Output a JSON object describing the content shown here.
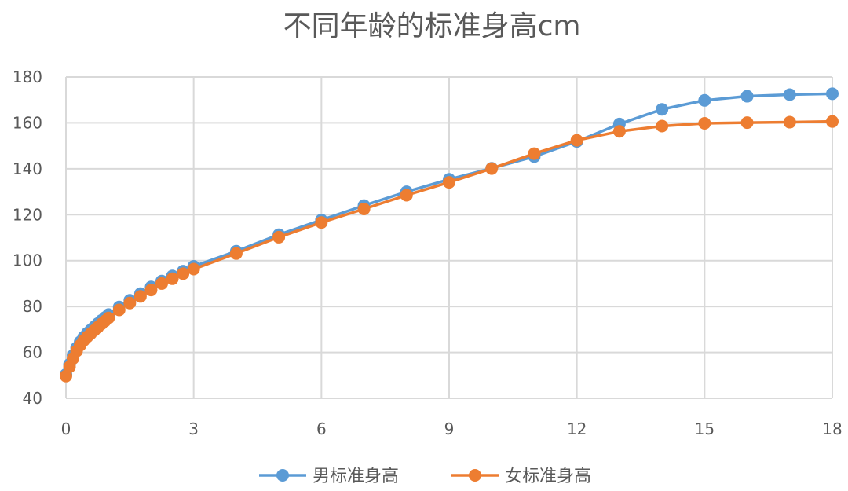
{
  "chart_data": {
    "type": "line",
    "title": "不同年龄的标准身高cm",
    "xlabel": "",
    "ylabel": "",
    "xlim": [
      0,
      18
    ],
    "ylim": [
      40,
      180
    ],
    "xticks": [
      0,
      3,
      6,
      9,
      12,
      15,
      18
    ],
    "yticks": [
      40,
      60,
      80,
      100,
      120,
      140,
      160,
      180
    ],
    "grid": true,
    "legend_position": "bottom",
    "x": [
      0,
      0.0833,
      0.1667,
      0.25,
      0.3333,
      0.4167,
      0.5,
      0.5833,
      0.6667,
      0.75,
      0.8333,
      0.9167,
      1,
      1.25,
      1.5,
      1.75,
      2,
      2.25,
      2.5,
      2.75,
      3,
      4,
      5,
      6,
      7,
      8,
      9,
      10,
      11,
      12,
      13,
      14,
      15,
      16,
      17,
      18
    ],
    "series": [
      {
        "name": "男标准身高",
        "color": "#5B9BD5",
        "values": [
          50.4,
          54.8,
          58.7,
          62.0,
          64.6,
          66.7,
          68.4,
          69.8,
          71.2,
          72.6,
          73.9,
          75.2,
          76.5,
          79.8,
          82.7,
          85.6,
          88.5,
          91.1,
          93.3,
          95.4,
          97.5,
          104.1,
          111.3,
          117.7,
          124.0,
          130.0,
          135.4,
          140.2,
          145.3,
          151.9,
          159.5,
          165.9,
          169.8,
          171.6,
          172.3,
          172.7
        ]
      },
      {
        "name": "女标准身高",
        "color": "#ED7D31",
        "values": [
          49.7,
          53.7,
          57.4,
          60.6,
          63.1,
          65.2,
          66.8,
          68.2,
          69.6,
          71.0,
          72.4,
          73.7,
          75.0,
          78.5,
          81.5,
          84.4,
          87.2,
          90.0,
          92.1,
          94.3,
          96.3,
          103.1,
          110.2,
          116.6,
          122.5,
          128.5,
          134.1,
          140.1,
          146.6,
          152.4,
          156.3,
          158.6,
          159.8,
          160.1,
          160.3,
          160.6
        ]
      }
    ]
  }
}
